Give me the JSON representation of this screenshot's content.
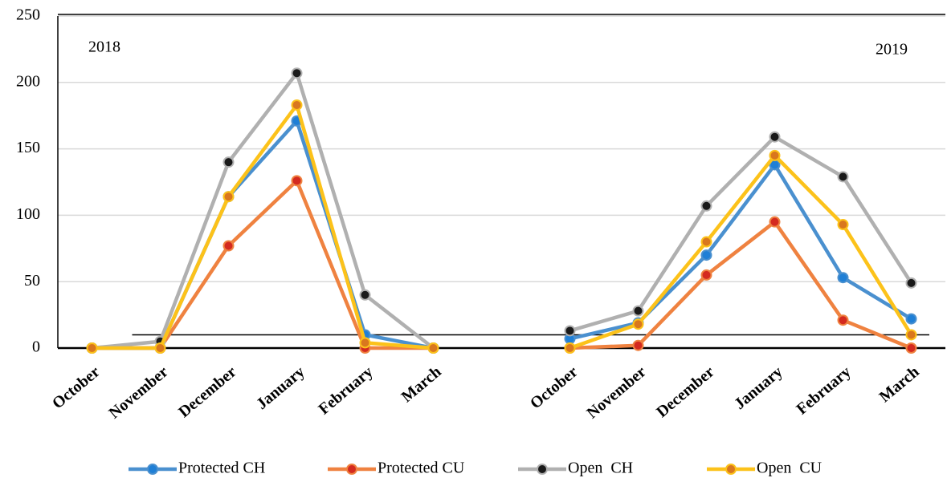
{
  "chart_data": {
    "type": "line",
    "annotations": [
      "2018",
      "2019"
    ],
    "categories": [
      "October",
      "November",
      "December",
      "January",
      "February",
      "March",
      null,
      "October",
      "November",
      "December",
      "January",
      "February",
      "March"
    ],
    "series": [
      {
        "name": "Protected CH",
        "color": "#4a90cf",
        "marker_color": "#1f7fd6",
        "values": [
          0,
          0,
          114,
          171,
          10,
          0,
          null,
          7,
          19,
          70,
          138,
          53,
          22
        ]
      },
      {
        "name": "Protected CU",
        "color": "#ef8240",
        "marker_color": "#d42a1f",
        "values": [
          0,
          0,
          77,
          126,
          0,
          0,
          null,
          0,
          2,
          55,
          95,
          21,
          0
        ]
      },
      {
        "name": "Open  CH",
        "color": "#b0b0b0",
        "marker_color": "#1a1a1a",
        "values": [
          0,
          5,
          140,
          207,
          40,
          0,
          null,
          13,
          28,
          107,
          159,
          129,
          49
        ]
      },
      {
        "name": "Open  CU",
        "color": "#fcc21a",
        "marker_color": "#d9771e",
        "values": [
          0,
          0,
          114,
          183,
          4,
          0,
          null,
          0,
          18,
          80,
          145,
          93,
          10
        ]
      }
    ],
    "reference_line": 10,
    "ylim": [
      0,
      250
    ],
    "yticks": [
      0,
      50,
      100,
      150,
      200,
      250
    ],
    "grid": true
  }
}
